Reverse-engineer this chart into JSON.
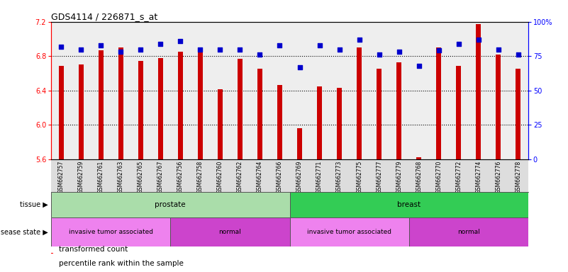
{
  "title": "GDS4114 / 226871_s_at",
  "samples": [
    "GSM662757",
    "GSM662759",
    "GSM662761",
    "GSM662763",
    "GSM662765",
    "GSM662767",
    "GSM662756",
    "GSM662758",
    "GSM662760",
    "GSM662762",
    "GSM662764",
    "GSM662766",
    "GSM662769",
    "GSM662771",
    "GSM662773",
    "GSM662775",
    "GSM662777",
    "GSM662779",
    "GSM662768",
    "GSM662770",
    "GSM662772",
    "GSM662774",
    "GSM662776",
    "GSM662778"
  ],
  "bar_values": [
    6.69,
    6.7,
    6.87,
    6.9,
    6.74,
    6.78,
    6.85,
    6.9,
    6.41,
    6.77,
    6.65,
    6.46,
    5.96,
    6.45,
    6.43,
    6.9,
    6.65,
    6.73,
    5.62,
    6.9,
    6.69,
    7.17,
    6.82,
    6.65
  ],
  "percentile_values": [
    82,
    80,
    83,
    78,
    80,
    84,
    86,
    80,
    80,
    80,
    76,
    83,
    67,
    83,
    80,
    87,
    76,
    78,
    68,
    79,
    84,
    87,
    80,
    76
  ],
  "bar_color": "#cc0000",
  "percentile_color": "#0000cc",
  "ylim_left": [
    5.6,
    7.2
  ],
  "ylim_right": [
    0,
    100
  ],
  "yticks_left": [
    5.6,
    6.0,
    6.4,
    6.8,
    7.2
  ],
  "yticks_right": [
    0,
    25,
    50,
    75,
    100
  ],
  "ytick_labels_right": [
    "0",
    "25",
    "50",
    "75",
    "100%"
  ],
  "grid_values": [
    6.0,
    6.4,
    6.8
  ],
  "tissue_groups": [
    {
      "label": "prostate",
      "start": 0,
      "end": 12,
      "color": "#aaddaa"
    },
    {
      "label": "breast",
      "start": 12,
      "end": 24,
      "color": "#33cc55"
    }
  ],
  "disease_groups": [
    {
      "label": "invasive tumor associated",
      "start": 0,
      "end": 6,
      "color": "#ee82ee"
    },
    {
      "label": "normal",
      "start": 6,
      "end": 12,
      "color": "#cc44cc"
    },
    {
      "label": "invasive tumor associated",
      "start": 12,
      "end": 18,
      "color": "#ee82ee"
    },
    {
      "label": "normal",
      "start": 18,
      "end": 24,
      "color": "#cc44cc"
    }
  ],
  "tissue_label": "tissue",
  "disease_label": "disease state",
  "legend_bar_label": "transformed count",
  "legend_pct_label": "percentile rank within the sample",
  "bar_width": 0.25,
  "label_area_color": "#dddddd",
  "fig_bg": "#ffffff"
}
